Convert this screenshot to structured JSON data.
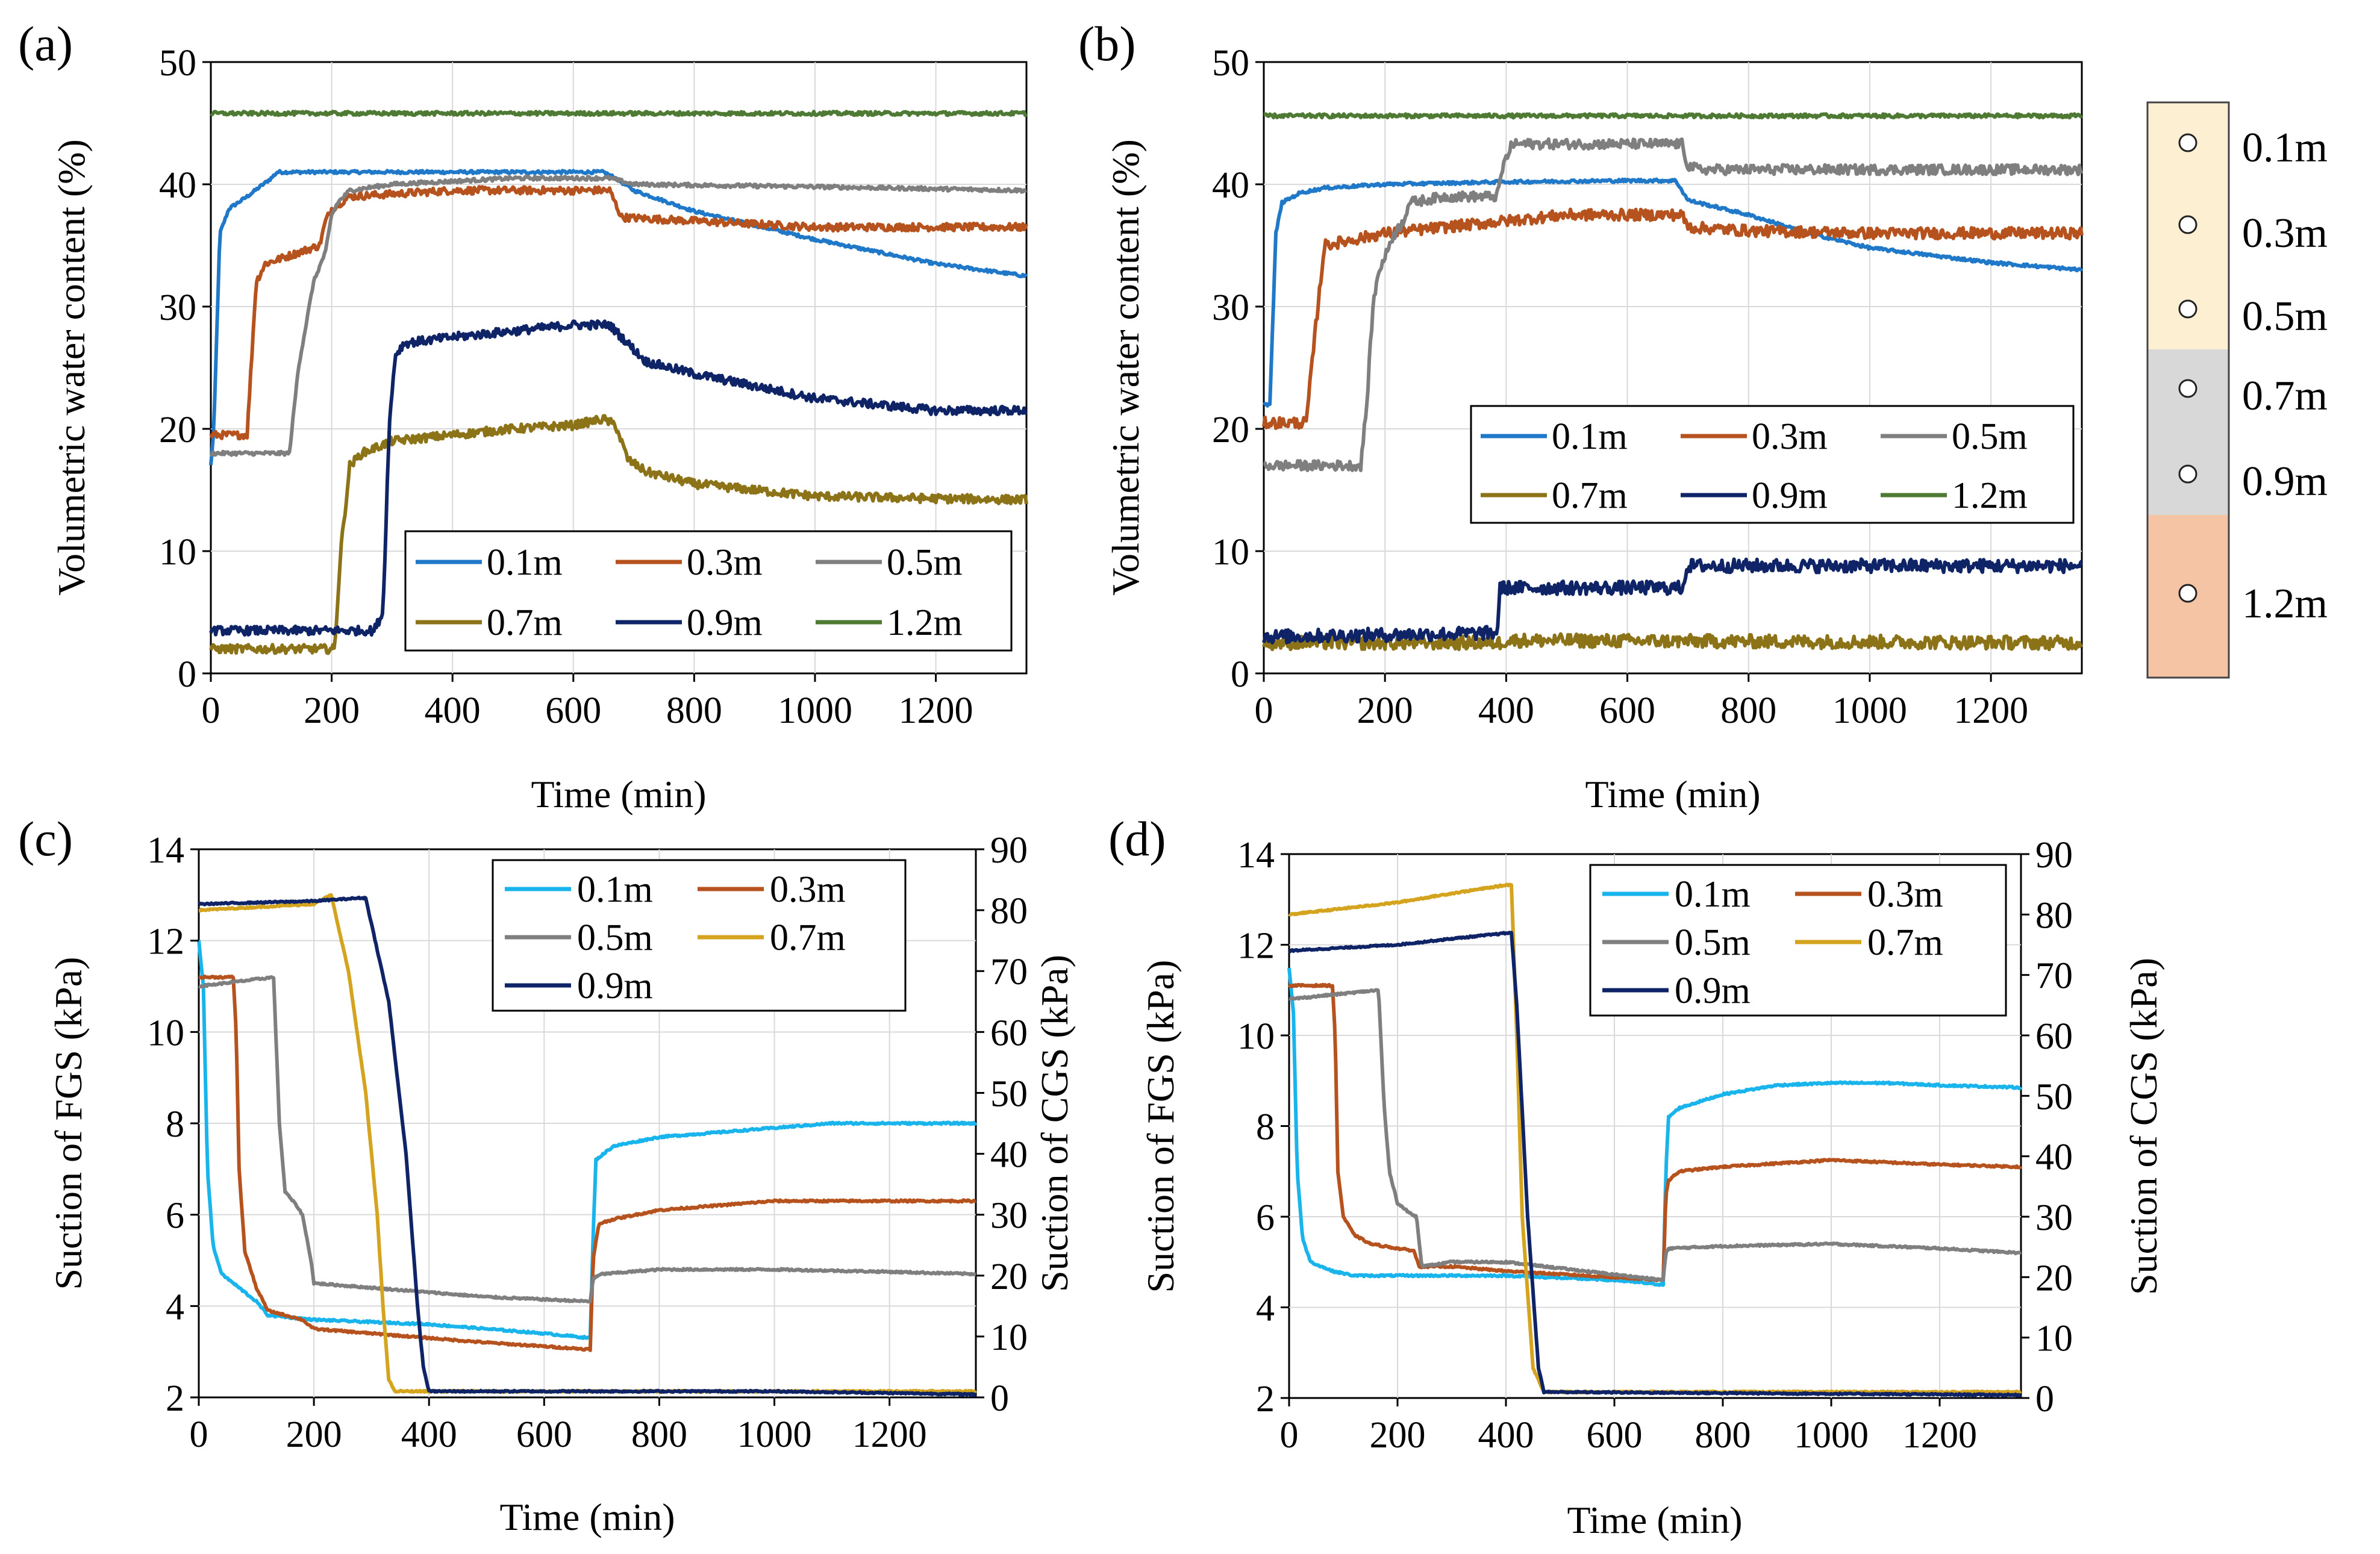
{
  "colors": {
    "0.1m_ab": "#1f78c8",
    "0.1m_cd": "#1ab4ec",
    "0.3m": "#b5521e",
    "0.5m": "#7f7f7f",
    "0.7m_ab": "#8c7318",
    "0.7m_cd": "#d4a41e",
    "0.9m": "#0e2466",
    "1.2m": "#4e7a34",
    "sand_fine": "#fdf0d2",
    "gravel": "#d8d8d8",
    "clay": "#f4c4a4"
  },
  "profile_legend": {
    "layers": [
      "0.1m",
      "0.3m",
      "0.5m",
      "0.7m",
      "0.9m",
      "1.2m"
    ]
  },
  "chart_data": [
    {
      "panel": "(a)",
      "type": "line",
      "title": "",
      "xlabel": "Time (min)",
      "ylabel": "Volumetric water content (%)",
      "xlim": [
        0,
        1350
      ],
      "ylim": [
        0,
        50
      ],
      "xticks": [
        0,
        200,
        400,
        600,
        800,
        1000,
        1200
      ],
      "yticks": [
        0,
        10,
        20,
        30,
        40,
        50
      ],
      "noise": [
        0.12,
        0.3,
        0.15,
        0.35,
        0.35,
        0.15
      ],
      "series": [
        {
          "name": "0.1m",
          "x": [
            0,
            5,
            15,
            30,
            60,
            100,
            110,
            400,
            650,
            670,
            700,
            800,
            1000,
            1200,
            1350
          ],
          "y": [
            17,
            20,
            36,
            38,
            39,
            40.5,
            41,
            41,
            41,
            40.5,
            39.5,
            37.8,
            35.5,
            33.5,
            32.5
          ]
        },
        {
          "name": "0.3m",
          "x": [
            0,
            60,
            75,
            90,
            180,
            190,
            200,
            230,
            400,
            660,
            680,
            800,
            1000,
            1200,
            1350
          ],
          "y": [
            19.5,
            19.5,
            32,
            33.5,
            35,
            37,
            38,
            39,
            39.5,
            39.5,
            37.3,
            37,
            36.5,
            36.5,
            36.5
          ]
        },
        {
          "name": "0.5m",
          "x": [
            0,
            130,
            145,
            170,
            190,
            200,
            210,
            230,
            300,
            500,
            660,
            700,
            1000,
            1350
          ],
          "y": [
            18,
            18,
            25,
            32,
            34.5,
            37.5,
            38.5,
            39.5,
            40,
            40.5,
            40.5,
            40,
            39.8,
            39.5
          ]
        },
        {
          "name": "0.7m",
          "x": [
            0,
            30,
            60,
            205,
            215,
            230,
            250,
            300,
            400,
            500,
            600,
            650,
            670,
            690,
            720,
            800,
            900,
            1000,
            1200,
            1350
          ],
          "y": [
            2,
            2,
            2,
            2,
            10,
            17,
            18,
            19,
            19.5,
            20,
            20.3,
            20.8,
            20.3,
            17.5,
            16.5,
            15.5,
            15,
            14.5,
            14.3,
            14.2
          ]
        },
        {
          "name": "0.9m",
          "x": [
            0,
            270,
            285,
            295,
            305,
            320,
            400,
            500,
            600,
            660,
            680,
            720,
            800,
            900,
            1000,
            1100,
            1200,
            1350
          ],
          "y": [
            3.5,
            3.5,
            5,
            20,
            26,
            27,
            27.5,
            28,
            28.5,
            28.5,
            27.5,
            25.5,
            24.5,
            23.5,
            22.5,
            22,
            21.5,
            21.5
          ]
        },
        {
          "name": "1.2m",
          "x": [
            0,
            1350
          ],
          "y": [
            45.8,
            45.8
          ]
        }
      ]
    },
    {
      "panel": "(b)",
      "type": "line",
      "title": "",
      "xlabel": "Time (min)",
      "ylabel": "Volumetric water content (%)",
      "xlim": [
        0,
        1350
      ],
      "ylim": [
        0,
        50
      ],
      "xticks": [
        0,
        200,
        400,
        600,
        800,
        1000,
        1200
      ],
      "yticks": [
        0,
        10,
        20,
        30,
        40,
        50
      ],
      "noise": [
        0.12,
        0.45,
        0.4,
        0.55,
        0.55,
        0.15
      ],
      "series": [
        {
          "name": "0.1m",
          "x": [
            0,
            10,
            20,
            30,
            60,
            100,
            200,
            400,
            600,
            680,
            700,
            800,
            900,
            1000,
            1200,
            1350
          ],
          "y": [
            22,
            22,
            36,
            38.5,
            39.3,
            39.7,
            40,
            40.2,
            40.3,
            40.3,
            38.7,
            37.5,
            36,
            34.8,
            33.6,
            33
          ]
        },
        {
          "name": "0.3m",
          "x": [
            0,
            70,
            85,
            100,
            150,
            200,
            300,
            400,
            500,
            600,
            690,
            700,
            800,
            1000,
            1350
          ],
          "y": [
            20.5,
            20.5,
            28,
            35,
            35.5,
            36,
            36.5,
            37,
            37.5,
            37.5,
            37.5,
            36.5,
            36.2,
            36,
            36
          ]
        },
        {
          "name": "0.5m",
          "x": [
            0,
            160,
            170,
            180,
            190,
            200,
            210,
            230,
            240,
            300,
            385,
            395,
            410,
            600,
            690,
            700,
            720,
            1000,
            1350
          ],
          "y": [
            17,
            17,
            22,
            30,
            33,
            34,
            35.5,
            37,
            38.5,
            39,
            39,
            41.5,
            43.3,
            43.3,
            43.3,
            41.5,
            41.2,
            41.2,
            41.2
          ]
        },
        {
          "name": "0.7m",
          "x": [
            0,
            390,
            400,
            1350
          ],
          "y": [
            2.5,
            2.5,
            2.7,
            2.5
          ]
        },
        {
          "name": "0.9m",
          "x": [
            0,
            385,
            390,
            690,
            700,
            1350
          ],
          "y": [
            3,
            3.3,
            7,
            7,
            8.8,
            8.8
          ]
        },
        {
          "name": "1.2m",
          "x": [
            0,
            1350
          ],
          "y": [
            45.6,
            45.6
          ]
        }
      ]
    },
    {
      "panel": "(c)",
      "type": "line",
      "title": "",
      "xlabel": "Time (min)",
      "ylabel": "Suction of FGS (kPa)",
      "y2label": "Suction of CGS (kPa)",
      "xlim": [
        0,
        1350
      ],
      "ylim": [
        2,
        14
      ],
      "y2lim": [
        0,
        90
      ],
      "xticks": [
        0,
        200,
        400,
        600,
        800,
        1000,
        1200
      ],
      "yticks": [
        2,
        4,
        6,
        8,
        10,
        12,
        14
      ],
      "y2ticks": [
        0,
        10,
        20,
        30,
        40,
        50,
        60,
        70,
        80,
        90
      ],
      "noise": [
        0.02,
        0.02,
        0.02,
        0.02,
        0.02
      ],
      "series": [
        {
          "name": "0.1m",
          "axis": "left",
          "x": [
            0,
            8,
            15,
            25,
            40,
            60,
            80,
            100,
            120,
            200,
            400,
            600,
            680,
            685,
            690,
            720,
            800,
            900,
            1000,
            1100,
            1200,
            1350
          ],
          "y": [
            12,
            11,
            7,
            5.3,
            4.7,
            4.5,
            4.3,
            4.1,
            3.8,
            3.7,
            3.6,
            3.4,
            3.3,
            5.5,
            7.2,
            7.5,
            7.7,
            7.8,
            7.9,
            8,
            8,
            8
          ]
        },
        {
          "name": "0.3m",
          "axis": "left",
          "x": [
            0,
            60,
            65,
            70,
            80,
            100,
            120,
            180,
            200,
            300,
            400,
            500,
            680,
            685,
            695,
            720,
            800,
            900,
            1000,
            1100,
            1200,
            1350
          ],
          "y": [
            11.2,
            11.2,
            10,
            7,
            5.2,
            4.4,
            3.9,
            3.7,
            3.5,
            3.4,
            3.3,
            3.2,
            3.05,
            5,
            5.8,
            5.9,
            6.1,
            6.2,
            6.3,
            6.3,
            6.3,
            6.3
          ]
        },
        {
          "name": "0.5m",
          "axis": "left",
          "x": [
            0,
            130,
            140,
            150,
            170,
            180,
            195,
            200,
            300,
            400,
            500,
            680,
            685,
            700,
            800,
            1000,
            1200,
            1350
          ],
          "y": [
            11,
            11.2,
            8,
            6.5,
            6.2,
            6,
            5,
            4.5,
            4.4,
            4.3,
            4.2,
            4.1,
            4.6,
            4.7,
            4.8,
            4.8,
            4.75,
            4.7
          ]
        },
        {
          "name": "0.7m",
          "axis": "right",
          "x": [
            0,
            200,
            230,
            260,
            290,
            310,
            320,
            330,
            340,
            1350
          ],
          "y": [
            80,
            81,
            82.5,
            70,
            50,
            30,
            15,
            3,
            1,
            1
          ]
        },
        {
          "name": "0.9m",
          "axis": "right",
          "x": [
            0,
            200,
            280,
            290,
            330,
            360,
            380,
            390,
            400,
            1000,
            1350
          ],
          "y": [
            81,
            81.5,
            82,
            82,
            65,
            40,
            15,
            5,
            1,
            1,
            0.5
          ]
        }
      ]
    },
    {
      "panel": "(d)",
      "type": "line",
      "title": "",
      "xlabel": "Time (min)",
      "ylabel": "Suction of FGS (kPa)",
      "y2label": "Suction of CGS (kPa)",
      "xlim": [
        0,
        1350
      ],
      "ylim": [
        2,
        14
      ],
      "y2lim": [
        0,
        90
      ],
      "xticks": [
        0,
        200,
        400,
        600,
        800,
        1000,
        1200
      ],
      "yticks": [
        2,
        4,
        6,
        8,
        10,
        12,
        14
      ],
      "y2ticks": [
        0,
        10,
        20,
        30,
        40,
        50,
        60,
        70,
        80,
        90
      ],
      "noise": [
        0.02,
        0.02,
        0.02,
        0.02,
        0.02
      ],
      "series": [
        {
          "name": "0.1m",
          "axis": "left",
          "x": [
            0,
            8,
            15,
            25,
            40,
            80,
            120,
            200,
            400,
            600,
            690,
            695,
            700,
            720,
            800,
            900,
            1000,
            1100,
            1200,
            1350
          ],
          "y": [
            11.5,
            10.5,
            7,
            5.5,
            5,
            4.8,
            4.7,
            4.7,
            4.7,
            4.6,
            4.5,
            7,
            8.2,
            8.4,
            8.7,
            8.9,
            8.95,
            8.95,
            8.9,
            8.85
          ]
        },
        {
          "name": "0.3m",
          "axis": "left",
          "x": [
            0,
            80,
            85,
            90,
            100,
            120,
            150,
            200,
            230,
            240,
            300,
            400,
            690,
            695,
            700,
            720,
            800,
            1000,
            1200,
            1350
          ],
          "y": [
            11.1,
            11.1,
            10,
            7,
            6,
            5.6,
            5.4,
            5.3,
            5.25,
            4.9,
            4.9,
            4.8,
            4.6,
            6.5,
            6.8,
            7,
            7.1,
            7.25,
            7.15,
            7.1
          ]
        },
        {
          "name": "0.5m",
          "axis": "left",
          "x": [
            0,
            165,
            175,
            185,
            200,
            220,
            235,
            245,
            300,
            400,
            690,
            695,
            700,
            800,
            1000,
            1200,
            1350
          ],
          "y": [
            10.8,
            11,
            8.5,
            7,
            6.3,
            6.1,
            6,
            4.9,
            5,
            5,
            4.6,
            5.2,
            5.3,
            5.35,
            5.4,
            5.3,
            5.2
          ]
        },
        {
          "name": "0.7m",
          "axis": "right",
          "x": [
            0,
            200,
            300,
            410,
            420,
            430,
            450,
            470,
            1350
          ],
          "y": [
            80,
            82,
            83.5,
            85,
            60,
            30,
            5,
            1,
            1
          ]
        },
        {
          "name": "0.9m",
          "axis": "right",
          "x": [
            0,
            200,
            300,
            410,
            420,
            440,
            460,
            470,
            1350
          ],
          "y": [
            74,
            75,
            76,
            77,
            65,
            30,
            5,
            1,
            0.5
          ]
        }
      ]
    }
  ],
  "panels": {
    "a": {
      "label": "(a)",
      "legend": [
        "0.1m",
        "0.3m",
        "0.5m",
        "0.7m",
        "0.9m",
        "1.2m"
      ]
    },
    "b": {
      "label": "(b)",
      "legend": [
        "0.1m",
        "0.3m",
        "0.5m",
        "0.7m",
        "0.9m",
        "1.2m"
      ]
    },
    "c": {
      "label": "(c)",
      "legend": [
        "0.1m",
        "0.3m",
        "0.5m",
        "0.7m",
        "0.9m"
      ]
    },
    "d": {
      "label": "(d)",
      "legend": [
        "0.1m",
        "0.3m",
        "0.5m",
        "0.7m",
        "0.9m"
      ]
    }
  }
}
